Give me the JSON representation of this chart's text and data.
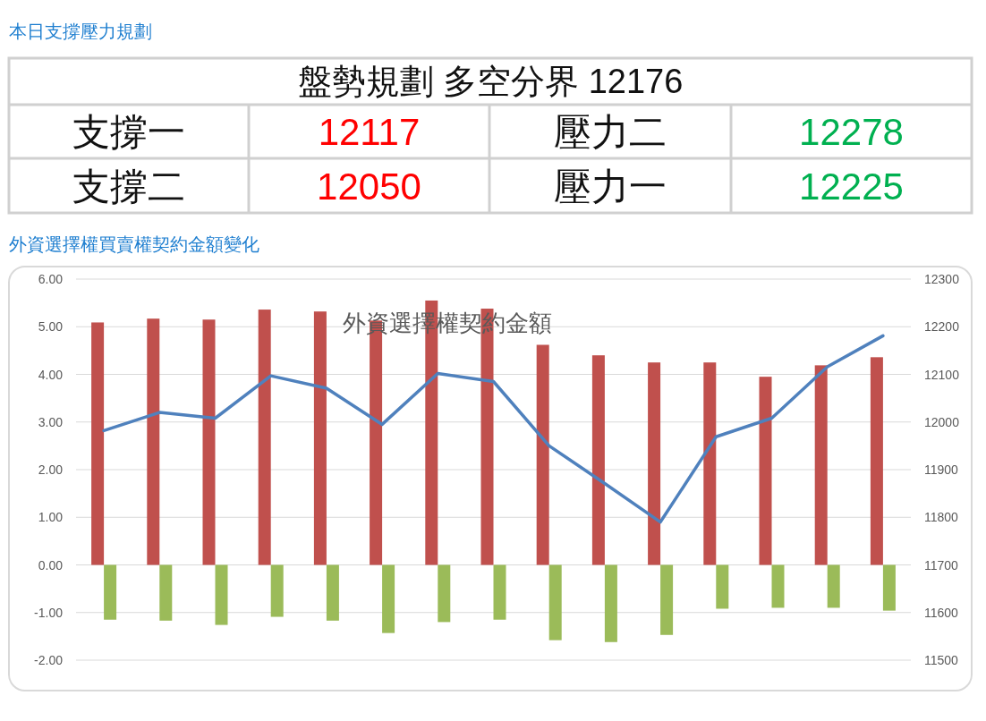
{
  "chart_data": [
    {
      "type": "other",
      "title": "本日支撐壓力規劃",
      "subtitle": "盤勢規劃 多空分界 12176",
      "annotations": [
        "支撐一",
        "12117",
        "壓力二",
        "12278",
        "支撐二",
        "12050",
        "壓力一",
        "12225"
      ],
      "colors": [
        null,
        "#ff0000",
        null,
        "#00b050",
        null,
        "#ff0000",
        null,
        "#00b050"
      ]
    },
    {
      "type": "bar",
      "title": "外資選擇權買賣權契約金額變化",
      "subtitle": "外資選擇權契約金額",
      "categories": [
        null,
        null,
        null,
        null,
        null,
        null,
        null,
        null,
        null,
        null,
        null,
        null,
        null,
        null,
        null
      ],
      "series": [
        {
          "color": "#c0504d",
          "values": [
            5.09,
            5.17,
            5.15,
            5.36,
            5.32,
            5.13,
            5.55,
            5.38,
            4.62,
            4.4,
            4.25,
            4.25,
            3.95,
            4.19,
            4.36
          ]
        },
        {
          "color": "#9bbb59",
          "values": [
            -1.15,
            -1.17,
            -1.26,
            -1.09,
            -1.17,
            -1.43,
            -1.2,
            -1.15,
            -1.58,
            -1.62,
            -1.47,
            -0.92,
            -0.9,
            -0.9,
            -0.96
          ]
        },
        {
          "type": "line",
          "axis": "y2",
          "color": "#4f81bd",
          "values": [
            11982,
            12020,
            12008,
            12097,
            12071,
            11995,
            12102,
            12085,
            11950,
            11871,
            11790,
            11969,
            12008,
            12116,
            12181
          ]
        }
      ],
      "ylim": [
        -2,
        6
      ],
      "yticks": [
        {
          "value": -2,
          "label": "-2.00"
        },
        {
          "value": -1,
          "label": "-1.00"
        },
        {
          "value": 0,
          "label": "0.00"
        },
        {
          "value": 1,
          "label": "1.00"
        },
        {
          "value": 2,
          "label": "2.00"
        },
        {
          "value": 3,
          "label": "3.00"
        },
        {
          "value": 4,
          "label": "4.00"
        },
        {
          "value": 5,
          "label": "5.00"
        },
        {
          "value": 6,
          "label": "6.00"
        }
      ],
      "y2lim": [
        11500,
        12300
      ],
      "y2ticks": [
        11500,
        11600,
        11700,
        11800,
        11900,
        12000,
        12100,
        12200,
        12300
      ],
      "grid": "y",
      "marker": "none"
    }
  ]
}
